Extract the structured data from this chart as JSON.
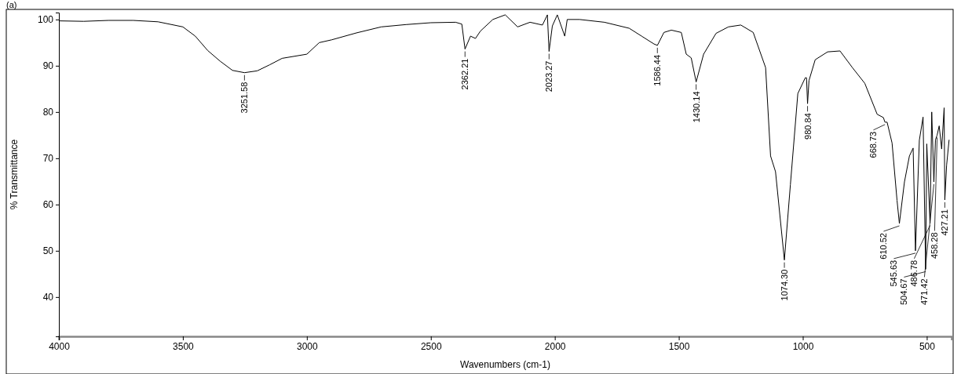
{
  "chart_data": {
    "type": "line",
    "title": "(a)",
    "xlabel": "Wavenumbers (cm-1)",
    "ylabel": "% Transmittance",
    "xlim": [
      4000,
      400
    ],
    "xticks": [
      4000,
      3500,
      3000,
      2500,
      2000,
      1500,
      1000,
      500
    ],
    "ylim": [
      31.5,
      101.5
    ],
    "yticks": [
      40,
      50,
      60,
      70,
      80,
      90,
      100
    ],
    "grid": false,
    "marker": "none",
    "line_style": "solid",
    "series": [
      {
        "color": "#000000",
        "x": [
          4000,
          3900,
          3800,
          3700,
          3600,
          3500,
          3450,
          3400,
          3350,
          3300,
          3251.58,
          3200,
          3150,
          3100,
          3000,
          2950,
          2900,
          2800,
          2700,
          2600,
          2500,
          2400,
          2375,
          2362.21,
          2340,
          2320,
          2300,
          2250,
          2200,
          2150,
          2100,
          2050,
          2030,
          2023.27,
          2010,
          1990,
          1960,
          1950,
          1900,
          1800,
          1700,
          1650,
          1600,
          1586.44,
          1560,
          1530,
          1490,
          1470,
          1450,
          1430.14,
          1400,
          1350,
          1300,
          1250,
          1200,
          1150,
          1130,
          1110,
          1074.3,
          1050,
          1020,
          990,
          985,
          980.84,
          975,
          950,
          900,
          850,
          800,
          750,
          700,
          675,
          668.73,
          660,
          640,
          620,
          610.52,
          590,
          570,
          555,
          545.63,
          530,
          515,
          504.67,
          500,
          486.78,
          480,
          471.42,
          465,
          458.28,
          450,
          440,
          430,
          427.21,
          420,
          410
        ],
        "values": [
          99.7,
          99.6,
          99.8,
          99.8,
          99.5,
          98.4,
          96.4,
          93.3,
          91.0,
          89.0,
          88.5,
          88.9,
          90.2,
          91.6,
          92.5,
          95.0,
          95.6,
          97.1,
          98.4,
          98.9,
          99.3,
          99.4,
          99.0,
          93.6,
          96.4,
          95.9,
          97.5,
          100.0,
          101.0,
          98.4,
          99.4,
          98.8,
          101.0,
          93.1,
          98.6,
          101.0,
          96.4,
          100.0,
          100.0,
          99.4,
          98.1,
          96.4,
          94.7,
          94.4,
          97.2,
          97.7,
          97.2,
          92.5,
          91.7,
          86.5,
          92.5,
          97.0,
          98.4,
          98.8,
          97.2,
          89.6,
          70.5,
          67.1,
          48.0,
          64.3,
          84.0,
          87.4,
          87.4,
          81.8,
          86.8,
          91.3,
          93.0,
          93.2,
          89.6,
          86.2,
          79.5,
          78.8,
          77.8,
          77.8,
          73.3,
          60.9,
          55.9,
          64.9,
          70.5,
          72.2,
          50.0,
          73.9,
          78.9,
          46.0,
          73.1,
          56.0,
          80.0,
          64.9,
          74.0,
          75.0,
          77.0,
          72.0,
          80.9,
          61.0,
          68.5,
          74.0
        ]
      }
    ],
    "annotations": [
      {
        "text": "3251.58",
        "x": 3251.58,
        "y": 88.5
      },
      {
        "text": "2362.21",
        "x": 2362.21,
        "y": 93.6
      },
      {
        "text": "2023.27",
        "x": 2023.27,
        "y": 93.1
      },
      {
        "text": "1586.44",
        "x": 1586.44,
        "y": 94.4
      },
      {
        "text": "1430.14",
        "x": 1430.14,
        "y": 86.5
      },
      {
        "text": "1074.30",
        "x": 1074.3,
        "y": 48.0
      },
      {
        "text": "980.84",
        "x": 980.84,
        "y": 81.8
      },
      {
        "text": "668.73",
        "x": 668.73,
        "y": 77.8
      },
      {
        "text": "610.52",
        "x": 610.52,
        "y": 55.9
      },
      {
        "text": "545.63",
        "x": 545.63,
        "y": 50.0
      },
      {
        "text": "504.67",
        "x": 504.67,
        "y": 46.0
      },
      {
        "text": "486.78",
        "x": 486.78,
        "y": 56.0
      },
      {
        "text": "471.42",
        "x": 471.42,
        "y": 64.9
      },
      {
        "text": "458.28",
        "x": 458.28,
        "y": 75.0
      },
      {
        "text": "427.21",
        "x": 427.21,
        "y": 61.0
      }
    ]
  }
}
